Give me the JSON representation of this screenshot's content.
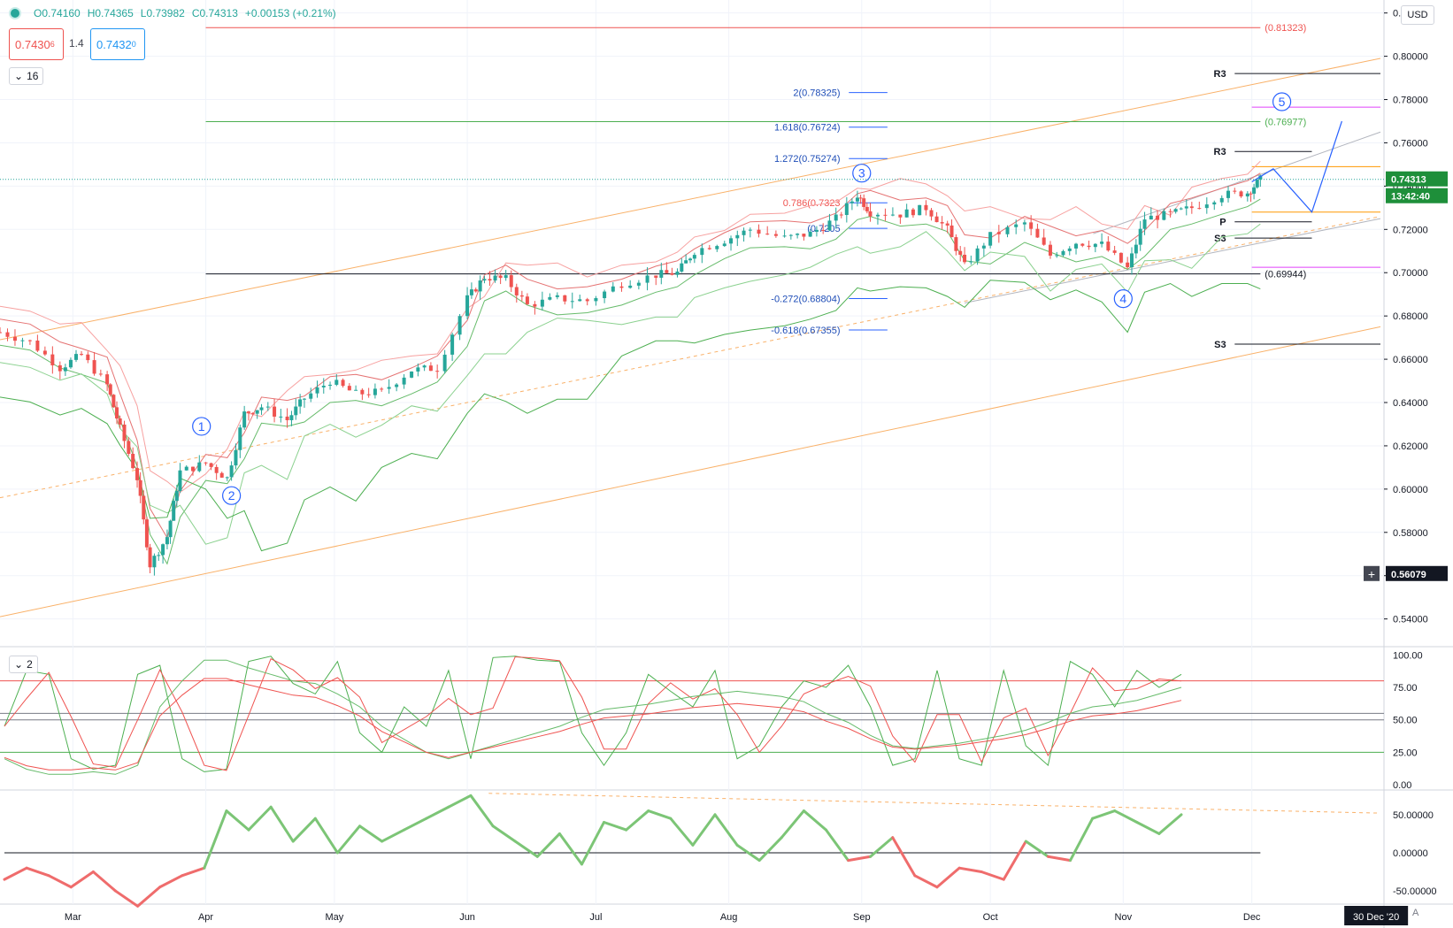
{
  "header": {
    "o": "O0.74160",
    "h": "H0.74365",
    "l": "L0.73982",
    "c": "C0.74313",
    "change": "+0.00153 (+0.21%)",
    "bid": "0.7430",
    "bid_sup": "6",
    "spread": "1.4",
    "ask": "0.7432",
    "ask_sup": "0",
    "interval_badge": "16",
    "stoch_badge": "2",
    "currency": "USD",
    "auto_label": "A"
  },
  "price_scale": {
    "ticks": [
      "0.82000",
      "0.80000",
      "0.78000",
      "0.76000",
      "0.74000",
      "0.72000",
      "0.70000",
      "0.68000",
      "0.66000",
      "0.64000",
      "0.62000",
      "0.60000",
      "0.58000",
      "0.56000",
      "0.54000"
    ],
    "last_price": "0.74313",
    "countdown": "13:42:40",
    "crosshair_price": "0.56079"
  },
  "time_scale": {
    "months": [
      "Mar",
      "Apr",
      "May",
      "Jun",
      "Jul",
      "Aug",
      "Sep",
      "Oct",
      "Nov",
      "Dec"
    ],
    "cursor_date": "30 Dec '20"
  },
  "colors": {
    "up": "#26a69a",
    "down": "#ef5350",
    "band_red": "#f7a1a0",
    "band_green": "#8bd18f",
    "channel": "#f9b169",
    "wave": "#2962ff",
    "axis_bg": "#131722"
  },
  "chart_data": [
    {
      "type": "candlestick",
      "ylim": [
        0.528,
        0.826
      ],
      "x_range": [
        "2020-02-13",
        "2020-12-31"
      ],
      "months": [
        "Mar",
        "Apr",
        "May",
        "Jun",
        "Jul",
        "Aug",
        "Sep",
        "Oct",
        "Nov",
        "Dec"
      ],
      "price_path": [
        [
          "2020-02-13",
          0.6725
        ],
        [
          "2020-02-20",
          0.668
        ],
        [
          "2020-02-27",
          0.656
        ],
        [
          "2020-03-03",
          0.662
        ],
        [
          "2020-03-09",
          0.648
        ],
        [
          "2020-03-12",
          0.628
        ],
        [
          "2020-03-16",
          0.605
        ],
        [
          "2020-03-19",
          0.565
        ],
        [
          "2020-03-23",
          0.578
        ],
        [
          "2020-03-26",
          0.608
        ],
        [
          "2020-04-01",
          0.612
        ],
        [
          "2020-04-06",
          0.605
        ],
        [
          "2020-04-10",
          0.635
        ],
        [
          "2020-04-14",
          0.638
        ],
        [
          "2020-04-20",
          0.632
        ],
        [
          "2020-04-24",
          0.642
        ],
        [
          "2020-04-30",
          0.65
        ],
        [
          "2020-05-06",
          0.644
        ],
        [
          "2020-05-12",
          0.645
        ],
        [
          "2020-05-19",
          0.655
        ],
        [
          "2020-05-25",
          0.656
        ],
        [
          "2020-06-01",
          0.688
        ],
        [
          "2020-06-05",
          0.698
        ],
        [
          "2020-06-10",
          0.697
        ],
        [
          "2020-06-15",
          0.685
        ],
        [
          "2020-06-22",
          0.688
        ],
        [
          "2020-06-29",
          0.687
        ],
        [
          "2020-07-07",
          0.695
        ],
        [
          "2020-07-15",
          0.699
        ],
        [
          "2020-07-20",
          0.7
        ],
        [
          "2020-07-24",
          0.71
        ],
        [
          "2020-07-31",
          0.715
        ],
        [
          "2020-08-06",
          0.72
        ],
        [
          "2020-08-14",
          0.716
        ],
        [
          "2020-08-20",
          0.718
        ],
        [
          "2020-08-26",
          0.725
        ],
        [
          "2020-08-31",
          0.736
        ],
        [
          "2020-09-03",
          0.728
        ],
        [
          "2020-09-10",
          0.727
        ],
        [
          "2020-09-16",
          0.73
        ],
        [
          "2020-09-21",
          0.72
        ],
        [
          "2020-09-25",
          0.703
        ],
        [
          "2020-10-01",
          0.717
        ],
        [
          "2020-10-09",
          0.723
        ],
        [
          "2020-10-15",
          0.708
        ],
        [
          "2020-10-21",
          0.714
        ],
        [
          "2020-10-27",
          0.713
        ],
        [
          "2020-11-02",
          0.702
        ],
        [
          "2020-11-06",
          0.725
        ],
        [
          "2020-11-12",
          0.727
        ],
        [
          "2020-11-17",
          0.73
        ],
        [
          "2020-11-24",
          0.736
        ],
        [
          "2020-11-30",
          0.737
        ],
        [
          "2020-12-03",
          0.743
        ]
      ],
      "horizontal_levels": [
        {
          "price": 0.81323,
          "label": "(0.81323)",
          "color": "#ef5350"
        },
        {
          "price": 0.76977,
          "label": "(0.76977)",
          "color": "#4caf50"
        },
        {
          "price": 0.69944,
          "label": "(0.69944)",
          "color": "#131722"
        }
      ],
      "fib_levels": [
        {
          "ratio": "2",
          "price": 0.78325,
          "label": "2(0.78325)"
        },
        {
          "ratio": "1.618",
          "price": 0.76724,
          "label": "1.618(0.76724)"
        },
        {
          "ratio": "1.272",
          "price": 0.75274,
          "label": "1.272(0.75274)"
        },
        {
          "ratio": "0.786",
          "price": 0.7323,
          "label": "0.786(0.7323"
        },
        {
          "ratio": "0.5",
          "price": 0.7205,
          "label": "(0.7205"
        },
        {
          "ratio": "-0.272",
          "price": 0.68804,
          "label": "-0.272(0.68804)"
        },
        {
          "ratio": "-0.618",
          "price": 0.67355,
          "label": "-0.618(0.67355)"
        }
      ],
      "pivots": [
        {
          "label": "R3",
          "price": 0.792
        },
        {
          "label": "R3",
          "price": 0.756
        },
        {
          "label": "P",
          "price": 0.7235
        },
        {
          "label": "S3",
          "price": 0.716
        },
        {
          "label": "S3",
          "price": 0.667
        }
      ],
      "wave_labels": [
        {
          "label": "1",
          "date": "2020-03-31",
          "price": 0.629
        },
        {
          "label": "2",
          "date": "2020-04-07",
          "price": 0.597
        },
        {
          "label": "3",
          "date": "2020-09-01",
          "price": 0.746
        },
        {
          "label": "4",
          "date": "2020-11-01",
          "price": 0.688
        },
        {
          "label": "5",
          "date": "2020-12-08",
          "price": 0.779
        }
      ]
    },
    {
      "type": "line",
      "title": "",
      "ylim": [
        -2,
        105
      ],
      "ticks": [
        "100.00",
        "75.00",
        "50.00",
        "25.00",
        "0.00"
      ],
      "levels": [
        80,
        55,
        50,
        25
      ],
      "series": [
        {
          "values": [
            45,
            88,
            85,
            20,
            12,
            15,
            85,
            92,
            20,
            10,
            12,
            95,
            99,
            78,
            70,
            95,
            40,
            25,
            60,
            45,
            88,
            20,
            98,
            99,
            96,
            95,
            40,
            15,
            40,
            85,
            72,
            60,
            88,
            20,
            30,
            60,
            80,
            75,
            92,
            60,
            15,
            20,
            88,
            20,
            15,
            88,
            30,
            15,
            95,
            85,
            60,
            88,
            75,
            85
          ]
        },
        {
          "values": [
            20,
            12,
            8,
            8,
            10,
            8,
            15,
            60,
            80,
            96,
            96,
            90,
            85,
            80,
            78,
            70,
            60,
            45,
            35,
            25,
            20,
            25,
            30,
            35,
            40,
            45,
            52,
            58,
            60,
            62,
            65,
            68,
            70,
            72,
            70,
            68,
            64,
            55,
            48,
            38,
            30,
            28,
            30,
            32,
            35,
            38,
            42,
            48,
            55,
            60,
            62,
            65,
            70,
            75
          ]
        }
      ]
    },
    {
      "type": "line",
      "title": "",
      "ylim": [
        -65,
        80
      ],
      "ticks": [
        "50.00000",
        "0.00000",
        "-50.00000"
      ],
      "series": [
        {
          "values": [
            -35,
            -20,
            -30,
            -45,
            -25,
            -50,
            -70,
            -45,
            -30,
            -20,
            55,
            30,
            60,
            15,
            45,
            0,
            35,
            15,
            30,
            45,
            60,
            75,
            35,
            15,
            -5,
            25,
            -15,
            40,
            30,
            55,
            45,
            10,
            50,
            10,
            -10,
            20,
            55,
            30,
            -10,
            -5,
            20,
            -30,
            -45,
            -20,
            -25,
            -35,
            15,
            -5,
            -10,
            45,
            55,
            40,
            25,
            50
          ]
        }
      ]
    }
  ]
}
